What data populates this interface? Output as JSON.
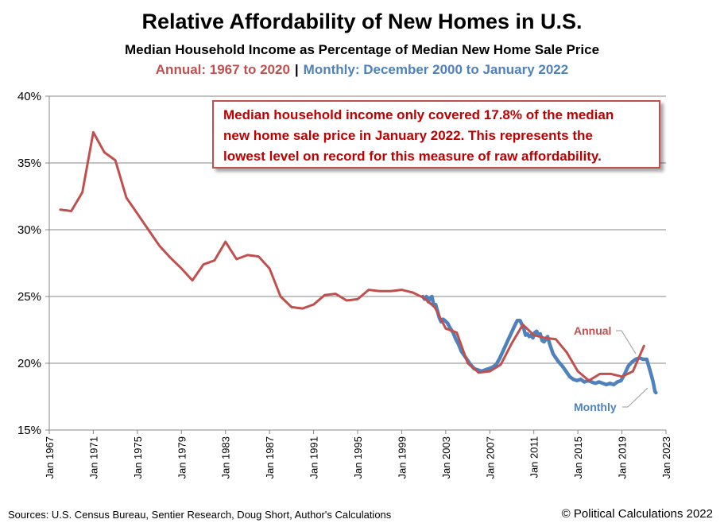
{
  "header": {
    "title": "Relative Affordability of New Homes in U.S.",
    "subtitle": "Median Household Income as Percentage of Median New Home Sale Price",
    "subtitle_annual": "Annual: 1967 to 2020",
    "subtitle_separator": "|",
    "subtitle_monthly": "Monthly: December 2000 to January 2022"
  },
  "callout": {
    "lines": [
      "Median household income only covered 17.8% of the median",
      "new home sale price in January 2022. This represents the",
      "lowest level on record for this measure of raw affordability."
    ]
  },
  "footer": {
    "sources": "Sources: U.S. Census Bureau, Sentier Research, Doug Short, Author's Calculations",
    "copyright": "© Political Calculations 2022"
  },
  "chart_data": {
    "type": "line",
    "xlim": [
      1967,
      2023
    ],
    "ylim": [
      15,
      40
    ],
    "grid": {
      "horizontal": true,
      "vertical": false
    },
    "y_ticks": [
      {
        "value": 15,
        "label": "15%"
      },
      {
        "value": 20,
        "label": "20%"
      },
      {
        "value": 25,
        "label": "25%"
      },
      {
        "value": 30,
        "label": "30%"
      },
      {
        "value": 35,
        "label": "35%"
      },
      {
        "value": 40,
        "label": "40%"
      }
    ],
    "x_ticks": [
      {
        "value": 1967,
        "label": "Jan 1967"
      },
      {
        "value": 1971,
        "label": "Jan 1971"
      },
      {
        "value": 1975,
        "label": "Jan 1975"
      },
      {
        "value": 1979,
        "label": "Jan 1979"
      },
      {
        "value": 1983,
        "label": "Jan 1983"
      },
      {
        "value": 1987,
        "label": "Jan 1987"
      },
      {
        "value": 1991,
        "label": "Jan 1991"
      },
      {
        "value": 1995,
        "label": "Jan 1995"
      },
      {
        "value": 1999,
        "label": "Jan 1999"
      },
      {
        "value": 2003,
        "label": "Jan 2003"
      },
      {
        "value": 2007,
        "label": "Jan 2007"
      },
      {
        "value": 2011,
        "label": "Jan 2011"
      },
      {
        "value": 2015,
        "label": "Jan 2015"
      },
      {
        "value": 2019,
        "label": "Jan 2019"
      },
      {
        "value": 2023,
        "label": "Jan 2023"
      }
    ],
    "series": [
      {
        "name": "Annual",
        "color": "#c0504d",
        "x": [
          1968,
          1969,
          1970,
          1971,
          1972,
          1973,
          1974,
          1975,
          1976,
          1977,
          1978,
          1979,
          1980,
          1981,
          1982,
          1983,
          1984,
          1985,
          1986,
          1987,
          1988,
          1989,
          1990,
          1991,
          1992,
          1993,
          1994,
          1995,
          1996,
          1997,
          1998,
          1999,
          2000,
          2001,
          2002,
          2003,
          2004,
          2005,
          2006,
          2007,
          2008,
          2009,
          2010,
          2011,
          2012,
          2013,
          2014,
          2015,
          2016,
          2017,
          2018,
          2019,
          2020,
          2021
        ],
        "values": [
          31.5,
          31.4,
          32.8,
          37.3,
          35.8,
          35.2,
          32.4,
          31.2,
          30.0,
          28.8,
          27.9,
          27.1,
          26.2,
          27.4,
          27.7,
          29.1,
          27.8,
          28.1,
          28.0,
          27.1,
          25.0,
          24.2,
          24.1,
          24.4,
          25.1,
          25.2,
          24.7,
          24.8,
          25.5,
          25.4,
          25.4,
          25.5,
          25.3,
          24.9,
          24.2,
          22.6,
          22.3,
          20.0,
          19.3,
          19.4,
          19.9,
          21.5,
          22.9,
          22.1,
          21.9,
          21.8,
          20.8,
          19.4,
          18.7,
          19.2,
          19.2,
          19.0,
          19.4,
          21.3
        ]
      },
      {
        "name": "Monthly",
        "color": "#4f81bd",
        "x": [
          2000.92,
          2001.08,
          2001.25,
          2001.42,
          2001.58,
          2001.75,
          2001.92,
          2002.08,
          2002.25,
          2002.42,
          2002.58,
          2002.75,
          2002.92,
          2003.17,
          2003.42,
          2003.67,
          2003.92,
          2004.17,
          2004.42,
          2004.67,
          2004.92,
          2005.25,
          2005.58,
          2005.92,
          2006.25,
          2006.58,
          2006.92,
          2007.25,
          2007.58,
          2007.92,
          2008.25,
          2008.58,
          2008.92,
          2009.25,
          2009.5,
          2009.75,
          2009.92,
          2010.08,
          2010.25,
          2010.42,
          2010.58,
          2010.75,
          2010.92,
          2011.08,
          2011.25,
          2011.42,
          2011.58,
          2011.75,
          2011.92,
          2012.08,
          2012.25,
          2012.42,
          2012.58,
          2012.75,
          2012.92,
          2013.25,
          2013.58,
          2013.92,
          2014.25,
          2014.58,
          2014.92,
          2015.25,
          2015.58,
          2015.92,
          2016.25,
          2016.58,
          2016.92,
          2017.25,
          2017.58,
          2017.92,
          2018.25,
          2018.58,
          2018.92,
          2019.25,
          2019.58,
          2019.92,
          2020.25,
          2020.58,
          2020.92,
          2021.25,
          2021.5,
          2021.67,
          2021.83,
          2022.0,
          2022.08
        ],
        "values": [
          25.0,
          24.8,
          25.0,
          24.6,
          24.9,
          25.0,
          24.3,
          24.4,
          23.9,
          23.4,
          23.1,
          23.3,
          23.2,
          23.0,
          22.6,
          22.3,
          21.8,
          21.4,
          20.9,
          20.6,
          20.3,
          19.9,
          19.6,
          19.5,
          19.4,
          19.5,
          19.6,
          19.7,
          19.9,
          20.4,
          21.0,
          21.6,
          22.2,
          22.8,
          23.2,
          23.2,
          22.9,
          22.6,
          22.1,
          22.2,
          22.0,
          22.1,
          21.9,
          22.3,
          22.4,
          22.1,
          22.2,
          21.7,
          21.6,
          21.8,
          22.0,
          21.5,
          21.1,
          20.7,
          20.5,
          20.1,
          19.8,
          19.4,
          19.0,
          18.8,
          18.7,
          18.8,
          18.6,
          18.7,
          18.6,
          18.5,
          18.6,
          18.5,
          18.4,
          18.5,
          18.4,
          18.6,
          18.7,
          19.2,
          19.8,
          20.1,
          20.3,
          20.4,
          20.3,
          20.3,
          19.6,
          19.1,
          18.6,
          17.9,
          17.8
        ]
      }
    ],
    "annotations": [
      {
        "text": "Annual",
        "color": "#c0504d"
      },
      {
        "text": "Monthly",
        "color": "#4f81bd"
      }
    ]
  }
}
